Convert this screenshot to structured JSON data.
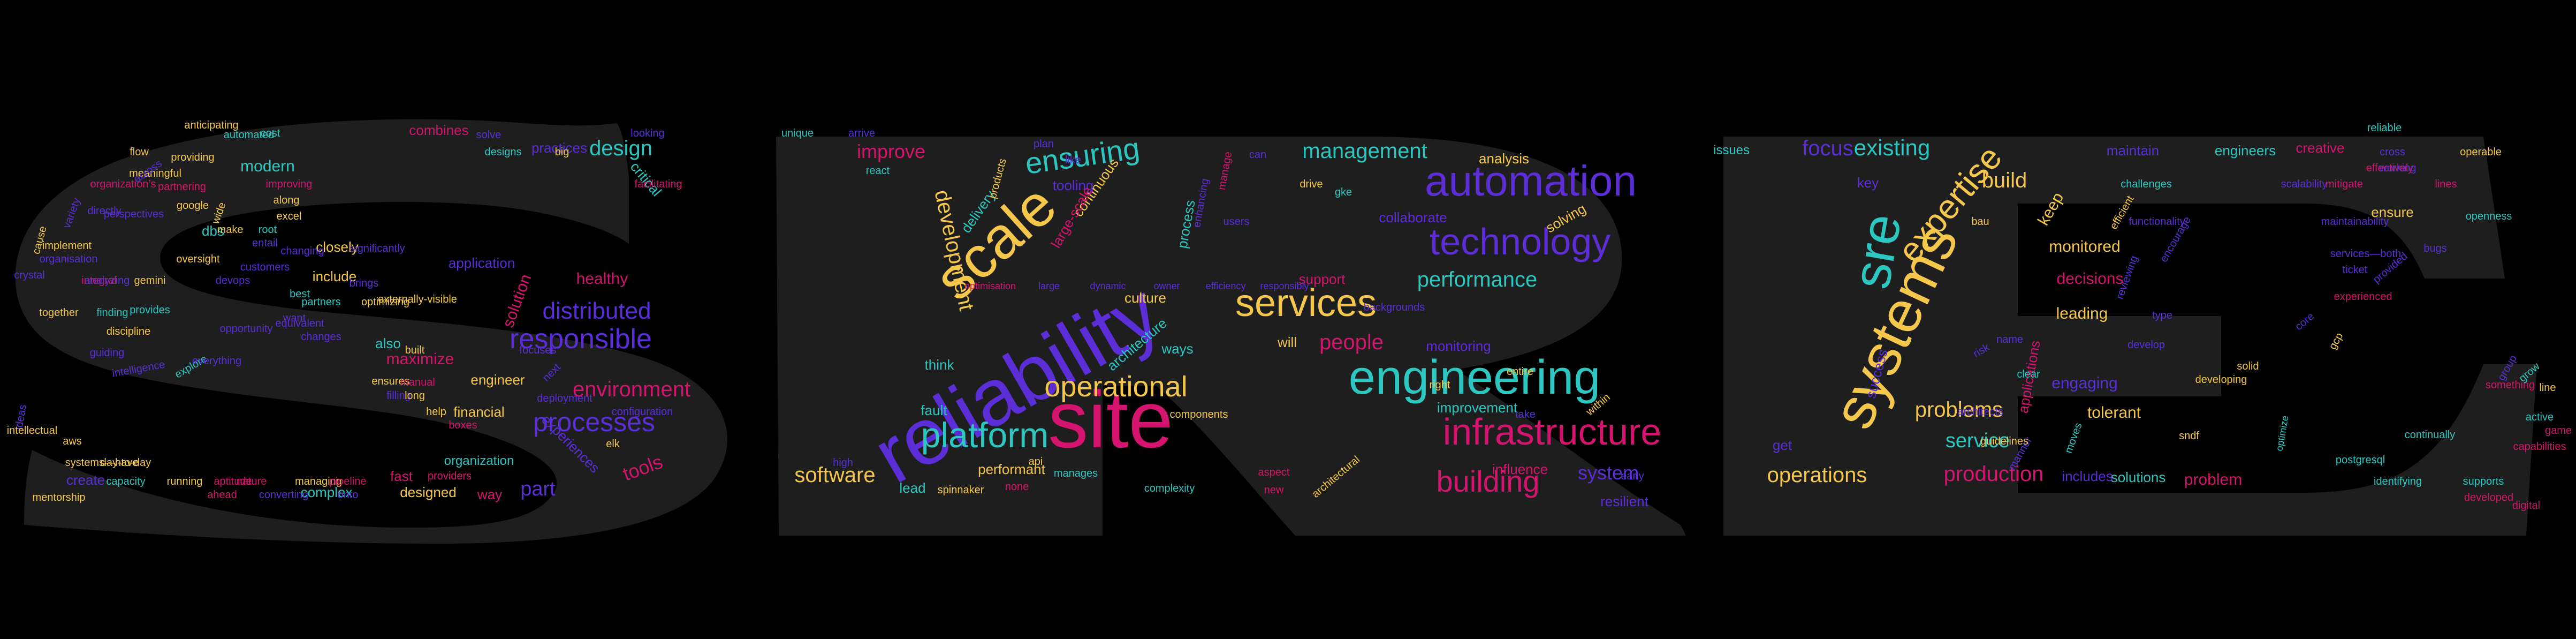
{
  "palette": {
    "background": "#000000",
    "letter_fill": "#1e1e1e",
    "yellow": "#f5c84c",
    "magenta": "#d4146e",
    "teal": "#2cc7c0",
    "purple": "#5b2ed8"
  },
  "letters": [
    "S",
    "R",
    "E"
  ],
  "words": [
    {
      "text": "reliability",
      "color": "purple"
    },
    {
      "text": "site",
      "color": "magenta"
    },
    {
      "text": "scale",
      "color": "yellow"
    },
    {
      "text": "systems",
      "color": "yellow"
    },
    {
      "text": "sre",
      "color": "teal"
    },
    {
      "text": "engineering",
      "color": "teal"
    },
    {
      "text": "automation",
      "color": "purple"
    },
    {
      "text": "technology",
      "color": "purple"
    },
    {
      "text": "infrastructure",
      "color": "magenta"
    },
    {
      "text": "platform",
      "color": "teal"
    },
    {
      "text": "operational",
      "color": "yellow"
    },
    {
      "text": "services",
      "color": "yellow"
    },
    {
      "text": "responsible",
      "color": "purple"
    },
    {
      "text": "distributed",
      "color": "purple"
    },
    {
      "text": "processes",
      "color": "purple"
    },
    {
      "text": "environment",
      "color": "magenta"
    },
    {
      "text": "expertise",
      "color": "yellow"
    },
    {
      "text": "building",
      "color": "magenta"
    },
    {
      "text": "ensuring",
      "color": "teal"
    },
    {
      "text": "performance",
      "color": "teal"
    },
    {
      "text": "development",
      "color": "yellow"
    },
    {
      "text": "management",
      "color": "teal"
    },
    {
      "text": "design",
      "color": "teal"
    },
    {
      "text": "operations",
      "color": "yellow"
    },
    {
      "text": "production",
      "color": "magenta"
    },
    {
      "text": "problems",
      "color": "yellow"
    },
    {
      "text": "existing",
      "color": "teal"
    },
    {
      "text": "focus",
      "color": "purple"
    },
    {
      "text": "software",
      "color": "yellow"
    },
    {
      "text": "people",
      "color": "magenta"
    },
    {
      "text": "improve",
      "color": "magenta"
    },
    {
      "text": "build",
      "color": "yellow"
    },
    {
      "text": "service",
      "color": "teal"
    },
    {
      "text": "system",
      "color": "purple"
    },
    {
      "text": "tools",
      "color": "magenta"
    },
    {
      "text": "part",
      "color": "purple"
    },
    {
      "text": "modern",
      "color": "teal"
    },
    {
      "text": "healthy",
      "color": "magenta"
    },
    {
      "text": "solution",
      "color": "magenta"
    },
    {
      "text": "application",
      "color": "purple"
    },
    {
      "text": "practices",
      "color": "purple"
    },
    {
      "text": "combines",
      "color": "magenta"
    },
    {
      "text": "closely",
      "color": "yellow"
    },
    {
      "text": "include",
      "color": "yellow"
    },
    {
      "text": "maximize",
      "color": "magenta"
    },
    {
      "text": "engineer",
      "color": "yellow"
    },
    {
      "text": "financial",
      "color": "yellow"
    },
    {
      "text": "organization",
      "color": "teal"
    },
    {
      "text": "designed",
      "color": "yellow"
    },
    {
      "text": "complex",
      "color": "teal"
    },
    {
      "text": "create",
      "color": "purple"
    },
    {
      "text": "way",
      "color": "magenta"
    },
    {
      "text": "also",
      "color": "teal"
    },
    {
      "text": "fast",
      "color": "magenta"
    },
    {
      "text": "critical",
      "color": "teal"
    },
    {
      "text": "dbs",
      "color": "teal"
    },
    {
      "text": "experiences",
      "color": "purple"
    },
    {
      "text": "continuous",
      "color": "yellow"
    },
    {
      "text": "delivery",
      "color": "teal"
    },
    {
      "text": "tooling",
      "color": "purple"
    },
    {
      "text": "analysis",
      "color": "yellow"
    },
    {
      "text": "collaborate",
      "color": "purple"
    },
    {
      "text": "solving",
      "color": "yellow"
    },
    {
      "text": "culture",
      "color": "yellow"
    },
    {
      "text": "architecture",
      "color": "teal"
    },
    {
      "text": "ways",
      "color": "teal"
    },
    {
      "text": "think",
      "color": "teal"
    },
    {
      "text": "fault",
      "color": "teal"
    },
    {
      "text": "monitoring",
      "color": "purple"
    },
    {
      "text": "improvement",
      "color": "teal"
    },
    {
      "text": "influence",
      "color": "magenta"
    },
    {
      "text": "resilient",
      "color": "purple"
    },
    {
      "text": "performant",
      "color": "yellow"
    },
    {
      "text": "lead",
      "color": "teal"
    },
    {
      "text": "support",
      "color": "magenta"
    },
    {
      "text": "process",
      "color": "teal"
    },
    {
      "text": "large-scale",
      "color": "magenta"
    },
    {
      "text": "products",
      "color": "yellow"
    },
    {
      "text": "will",
      "color": "yellow"
    },
    {
      "text": "monitored",
      "color": "yellow"
    },
    {
      "text": "leading",
      "color": "yellow"
    },
    {
      "text": "decisions",
      "color": "magenta"
    },
    {
      "text": "engaging",
      "color": "purple"
    },
    {
      "text": "tolerant",
      "color": "yellow"
    },
    {
      "text": "solutions",
      "color": "teal"
    },
    {
      "text": "problem",
      "color": "magenta"
    },
    {
      "text": "includes",
      "color": "purple"
    },
    {
      "text": "maintain",
      "color": "purple"
    },
    {
      "text": "engineers",
      "color": "teal"
    },
    {
      "text": "creative",
      "color": "magenta"
    },
    {
      "text": "ensure",
      "color": "yellow"
    },
    {
      "text": "keep",
      "color": "yellow"
    },
    {
      "text": "applications",
      "color": "magenta"
    },
    {
      "text": "issues",
      "color": "teal"
    },
    {
      "text": "key",
      "color": "purple"
    },
    {
      "text": "get",
      "color": "purple"
    },
    {
      "text": "success",
      "color": "purple"
    },
    {
      "text": "developing",
      "color": "yellow"
    },
    {
      "text": "identifying",
      "color": "teal"
    },
    {
      "text": "supports",
      "color": "teal"
    },
    {
      "text": "postgresql",
      "color": "teal"
    },
    {
      "text": "continually",
      "color": "teal"
    },
    {
      "text": "capabilities",
      "color": "magenta"
    },
    {
      "text": "game",
      "color": "magenta"
    },
    {
      "text": "active",
      "color": "teal"
    },
    {
      "text": "something",
      "color": "magenta"
    },
    {
      "text": "group",
      "color": "purple"
    },
    {
      "text": "grow",
      "color": "teal"
    },
    {
      "text": "cross",
      "color": "purple"
    },
    {
      "text": "operable",
      "color": "yellow"
    },
    {
      "text": "reliable",
      "color": "teal"
    },
    {
      "text": "scalability",
      "color": "purple"
    },
    {
      "text": "lines",
      "color": "magenta"
    },
    {
      "text": "effectively",
      "color": "magenta"
    },
    {
      "text": "openness",
      "color": "teal"
    },
    {
      "text": "mitigate",
      "color": "magenta"
    },
    {
      "text": "optimize",
      "color": "teal"
    },
    {
      "text": "flow",
      "color": "yellow"
    },
    {
      "text": "cost",
      "color": "teal"
    },
    {
      "text": "automated",
      "color": "teal"
    },
    {
      "text": "providing",
      "color": "yellow"
    },
    {
      "text": "anticipating",
      "color": "yellow"
    },
    {
      "text": "organization’s",
      "color": "magenta"
    },
    {
      "text": "meaningful",
      "color": "yellow"
    },
    {
      "text": "improving",
      "color": "magenta"
    },
    {
      "text": "partnering",
      "color": "magenta"
    },
    {
      "text": "along",
      "color": "yellow"
    },
    {
      "text": "across",
      "color": "purple"
    },
    {
      "text": "google",
      "color": "yellow"
    },
    {
      "text": "excel",
      "color": "yellow"
    },
    {
      "text": "directly",
      "color": "purple"
    },
    {
      "text": "perspectives",
      "color": "purple"
    },
    {
      "text": "root",
      "color": "teal"
    },
    {
      "text": "make",
      "color": "yellow"
    },
    {
      "text": "significantly",
      "color": "purple"
    },
    {
      "text": "changing",
      "color": "purple"
    },
    {
      "text": "implement",
      "color": "yellow"
    },
    {
      "text": "organisation",
      "color": "purple"
    },
    {
      "text": "oversight",
      "color": "yellow"
    },
    {
      "text": "integral",
      "color": "magenta"
    },
    {
      "text": "analyzing",
      "color": "purple"
    },
    {
      "text": "gemini",
      "color": "yellow"
    },
    {
      "text": "devops",
      "color": "purple"
    },
    {
      "text": "best",
      "color": "teal"
    },
    {
      "text": "optimizing",
      "color": "yellow"
    },
    {
      "text": "externally-visible",
      "color": "yellow"
    },
    {
      "text": "partners",
      "color": "teal"
    },
    {
      "text": "discipline",
      "color": "yellow"
    },
    {
      "text": "guiding",
      "color": "purple"
    },
    {
      "text": "together",
      "color": "yellow"
    },
    {
      "text": "finding",
      "color": "teal"
    },
    {
      "text": "aws",
      "color": "yellow"
    },
    {
      "text": "systems—have",
      "color": "yellow"
    },
    {
      "text": "day-to-day",
      "color": "yellow"
    },
    {
      "text": "capacity",
      "color": "teal"
    },
    {
      "text": "running",
      "color": "yellow"
    },
    {
      "text": "aptitude",
      "color": "magenta"
    },
    {
      "text": "nature",
      "color": "magenta"
    },
    {
      "text": "managing",
      "color": "yellow"
    },
    {
      "text": "pipeline",
      "color": "magenta"
    },
    {
      "text": "providers",
      "color": "magenta"
    },
    {
      "text": "ahead",
      "color": "magenta"
    },
    {
      "text": "converting",
      "color": "purple"
    },
    {
      "text": "onto",
      "color": "purple"
    },
    {
      "text": "mentorship",
      "color": "yellow"
    },
    {
      "text": "filling",
      "color": "purple"
    },
    {
      "text": "ensures",
      "color": "yellow"
    },
    {
      "text": "manual",
      "color": "magenta"
    },
    {
      "text": "long",
      "color": "yellow"
    },
    {
      "text": "help",
      "color": "yellow"
    },
    {
      "text": "boxes",
      "color": "magenta"
    },
    {
      "text": "deployment",
      "color": "purple"
    },
    {
      "text": "configuration",
      "color": "purple"
    },
    {
      "text": "elk",
      "color": "yellow"
    },
    {
      "text": "next",
      "color": "purple"
    },
    {
      "text": "focuses",
      "color": "purple"
    },
    {
      "text": "built",
      "color": "yellow"
    },
    {
      "text": "explore",
      "color": "teal"
    },
    {
      "text": "ideas",
      "color": "purple"
    },
    {
      "text": "intellectual",
      "color": "yellow"
    },
    {
      "text": "designs",
      "color": "teal"
    },
    {
      "text": "big",
      "color": "yellow"
    },
    {
      "text": "solve",
      "color": "purple"
    },
    {
      "text": "looking",
      "color": "purple"
    },
    {
      "text": "facilitating",
      "color": "magenta"
    },
    {
      "text": "unique",
      "color": "teal"
    },
    {
      "text": "arrive",
      "color": "purple"
    },
    {
      "text": "react",
      "color": "teal"
    },
    {
      "text": "plan",
      "color": "purple"
    },
    {
      "text": "like",
      "color": "purple"
    },
    {
      "text": "can",
      "color": "purple"
    },
    {
      "text": "manage",
      "color": "magenta"
    },
    {
      "text": "users",
      "color": "purple"
    },
    {
      "text": "enhancing",
      "color": "purple"
    },
    {
      "text": "drive",
      "color": "yellow"
    },
    {
      "text": "gke",
      "color": "teal"
    },
    {
      "text": "right",
      "color": "yellow"
    },
    {
      "text": "entire",
      "color": "yellow"
    },
    {
      "text": "take",
      "color": "purple"
    },
    {
      "text": "within",
      "color": "yellow"
    },
    {
      "text": "early",
      "color": "purple"
    },
    {
      "text": "complexity",
      "color": "teal"
    },
    {
      "text": "new",
      "color": "magenta"
    },
    {
      "text": "none",
      "color": "magenta"
    },
    {
      "text": "spinnaker",
      "color": "yellow"
    },
    {
      "text": "manages",
      "color": "teal"
    },
    {
      "text": "api",
      "color": "yellow"
    },
    {
      "text": "high",
      "color": "purple"
    },
    {
      "text": "components",
      "color": "yellow"
    },
    {
      "text": "architectural",
      "color": "yellow"
    },
    {
      "text": "aspect",
      "color": "magenta"
    },
    {
      "text": "backgrounds",
      "color": "purple"
    },
    {
      "text": "clear",
      "color": "teal"
    },
    {
      "text": "bau",
      "color": "yellow"
    },
    {
      "text": "risk",
      "color": "purple"
    },
    {
      "text": "name",
      "color": "purple"
    },
    {
      "text": "manner",
      "color": "purple"
    },
    {
      "text": "moves",
      "color": "teal"
    },
    {
      "text": "type",
      "color": "purple"
    },
    {
      "text": "sndf",
      "color": "yellow"
    },
    {
      "text": "core",
      "color": "purple"
    },
    {
      "text": "gcp",
      "color": "yellow"
    },
    {
      "text": "solid",
      "color": "yellow"
    },
    {
      "text": "encourage",
      "color": "purple"
    },
    {
      "text": "functionality",
      "color": "purple"
    },
    {
      "text": "efficient",
      "color": "yellow"
    },
    {
      "text": "challenges",
      "color": "teal"
    },
    {
      "text": "provided",
      "color": "purple"
    },
    {
      "text": "ticket",
      "color": "purple"
    },
    {
      "text": "services—both",
      "color": "purple"
    },
    {
      "text": "working",
      "color": "purple"
    },
    {
      "text": "developed",
      "color": "magenta"
    },
    {
      "text": "digital",
      "color": "magenta"
    },
    {
      "text": "crystal",
      "color": "purple"
    },
    {
      "text": "cause",
      "color": "yellow"
    },
    {
      "text": "variety",
      "color": "purple"
    },
    {
      "text": "wide",
      "color": "yellow"
    },
    {
      "text": "entail",
      "color": "purple"
    },
    {
      "text": "customers",
      "color": "purple"
    },
    {
      "text": "provides",
      "color": "teal"
    },
    {
      "text": "changes",
      "color": "purple"
    },
    {
      "text": "equivalent",
      "color": "purple"
    },
    {
      "text": "want",
      "color": "purple"
    },
    {
      "text": "opportunity",
      "color": "purple"
    },
    {
      "text": "brings",
      "color": "purple"
    },
    {
      "text": "intelligence",
      "color": "purple"
    },
    {
      "text": "everything",
      "color": "purple"
    },
    {
      "text": "reviewing",
      "color": "purple"
    },
    {
      "text": "architects",
      "color": "purple"
    },
    {
      "text": "guidelines",
      "color": "yellow"
    },
    {
      "text": "develop",
      "color": "purple"
    },
    {
      "text": "maintainability",
      "color": "purple"
    },
    {
      "text": "experienced",
      "color": "magenta"
    },
    {
      "text": "bugs",
      "color": "purple"
    },
    {
      "text": "line",
      "color": "yellow"
    },
    {
      "text": "optimisation",
      "color": "magenta"
    },
    {
      "text": "large",
      "color": "purple"
    },
    {
      "text": "dynamic",
      "color": "purple"
    },
    {
      "text": "owner",
      "color": "purple"
    },
    {
      "text": "efficiency",
      "color": "purple"
    },
    {
      "text": "responsibly",
      "color": "purple"
    }
  ]
}
